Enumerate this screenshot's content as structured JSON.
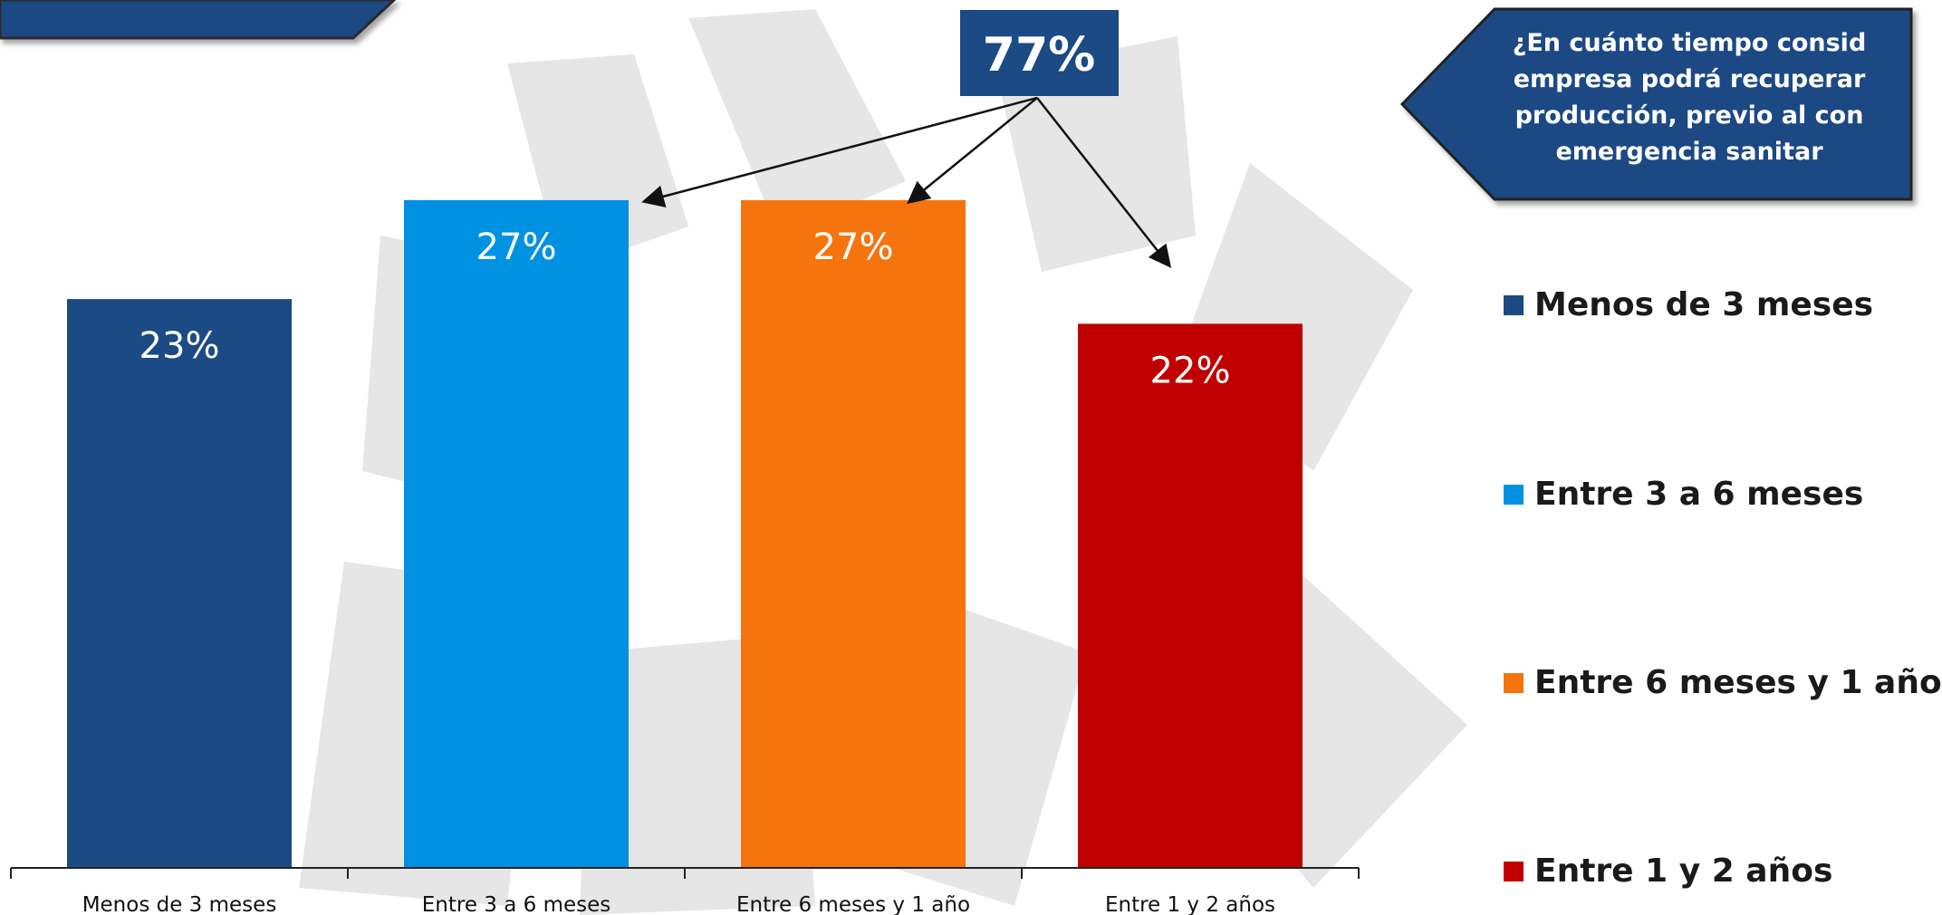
{
  "callout": {
    "text": "¿En cuánto tiempo consid\nempresa podrá recuperar\nproducción, previo al con\nemergencia sanitar"
  },
  "summary": {
    "label": "77%"
  },
  "legend": {
    "items": [
      {
        "label": "Menos de 3 meses",
        "color": "#1b4a84"
      },
      {
        "label": "Entre 3 a 6 meses",
        "color": "#0091e3"
      },
      {
        "label": "Entre 6 meses y 1 año",
        "color": "#f5740e"
      },
      {
        "label": "Entre 1 y 2 años",
        "color": "#c00000"
      }
    ]
  },
  "chart_data": {
    "type": "bar",
    "categories": [
      "Menos de 3 meses",
      "Entre 3 a 6 meses",
      "Entre 6 meses y 1 año",
      "Entre 1 y 2 años"
    ],
    "values": [
      23,
      27,
      27,
      22
    ],
    "value_labels": [
      "23%",
      "27%",
      "27%",
      "22%"
    ],
    "colors": [
      "#1b4a84",
      "#0091e3",
      "#f5740e",
      "#c00000"
    ],
    "ylim": [
      0,
      35
    ],
    "grid": false,
    "legend_position": "right"
  }
}
